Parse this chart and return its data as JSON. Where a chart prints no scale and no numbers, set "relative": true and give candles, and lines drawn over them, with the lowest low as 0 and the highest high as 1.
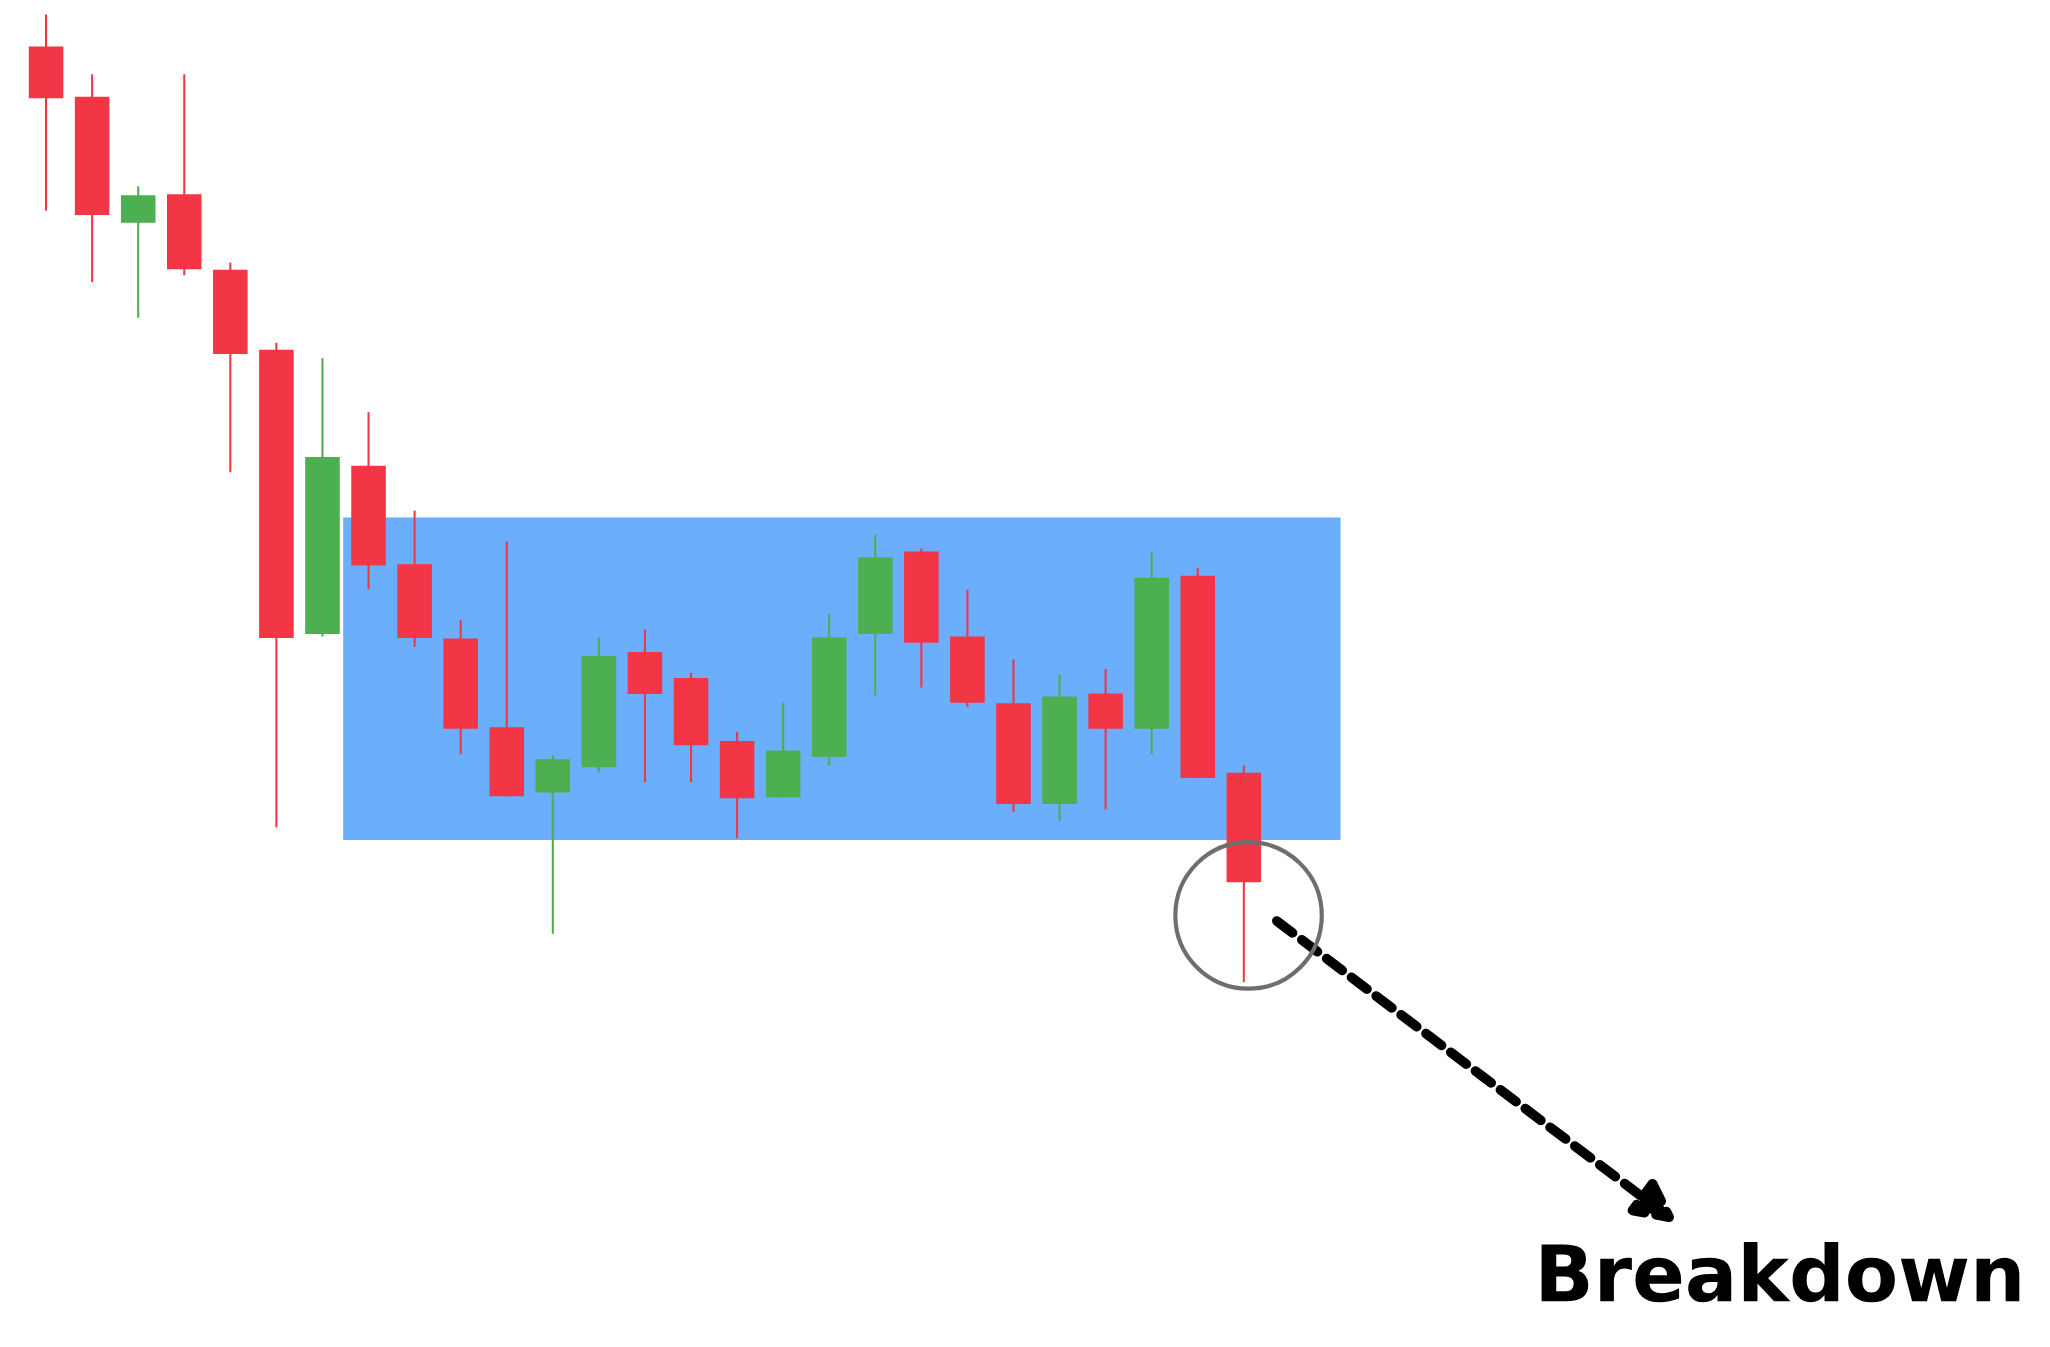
{
  "chart_data": {
    "type": "candlestick",
    "relative": true,
    "categories": [
      null,
      null,
      null,
      null,
      null,
      null,
      null,
      null,
      null,
      null,
      null,
      null,
      null,
      null,
      null,
      null,
      null,
      null,
      null,
      null,
      null,
      null,
      null,
      null,
      null,
      null,
      null
    ],
    "ohlc": [
      [
        0.967,
        1,
        0.799,
        0.915
      ],
      [
        0.915,
        0.938,
        0.725,
        0.794
      ],
      [
        0.786,
        0.822,
        0.688,
        0.813
      ],
      [
        0.814,
        0.938,
        0.732,
        0.738
      ],
      [
        0.736,
        0.743,
        0.528,
        0.65
      ],
      [
        0.653,
        0.66,
        0.16,
        0.356
      ],
      [
        0.36,
        0.644,
        0.358,
        0.542
      ],
      [
        0.533,
        0.588,
        0.407,
        0.431
      ],
      [
        0.431,
        0.486,
        0.347,
        0.356
      ],
      [
        0.354,
        0.373,
        0.236,
        0.262
      ],
      [
        0.262,
        0.454,
        0.192,
        0.192
      ],
      [
        0.196,
        0.233,
        0.05,
        0.229
      ],
      [
        0.222,
        0.355,
        0.217,
        0.336
      ],
      [
        0.34,
        0.363,
        0.207,
        0.298
      ],
      [
        0.313,
        0.318,
        0.207,
        0.245
      ],
      [
        0.248,
        0.257,
        0.149,
        0.19
      ],
      [
        0.191,
        0.287,
        0.191,
        0.238
      ],
      [
        0.233,
        0.379,
        0.224,
        0.355
      ],
      [
        0.36,
        0.461,
        0.297,
        0.438
      ],
      [
        0.444,
        0.447,
        0.305,
        0.351
      ],
      [
        0.356,
        0.404,
        0.285,
        0.289
      ],
      [
        0.287,
        0.332,
        0.176,
        0.184
      ],
      [
        0.184,
        0.316,
        0.167,
        0.294
      ],
      [
        0.297,
        0.322,
        0.179,
        0.262
      ],
      [
        0.262,
        0.443,
        0.236,
        0.417
      ],
      [
        0.419,
        0.427,
        0.211,
        0.211
      ],
      [
        0.215,
        0.222,
        0,
        0.103
      ]
    ],
    "colors": [
      "#f23645",
      "#f23645",
      "#4caf50",
      "#f23645",
      "#f23645",
      "#f23645",
      "#4caf50",
      "#f23645",
      "#f23645",
      "#f23645",
      "#f23645",
      "#4caf50",
      "#4caf50",
      "#f23645",
      "#f23645",
      "#f23645",
      "#4caf50",
      "#4caf50",
      "#4caf50",
      "#f23645",
      "#f23645",
      "#f23645",
      "#4caf50",
      "#f23645",
      "#4caf50",
      "#f23645",
      "#f23645"
    ],
    "bands": [
      {
        "axis": "y",
        "from": 0.146,
        "to": 0.48,
        "color": "#6aaefc"
      }
    ],
    "annotations": [
      "Breakdown"
    ]
  }
}
